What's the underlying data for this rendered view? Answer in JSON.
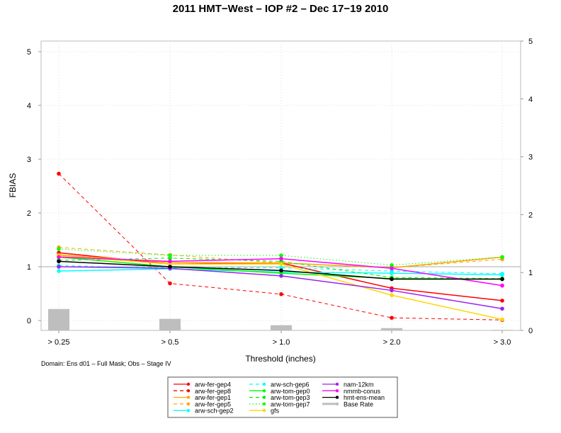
{
  "chart_data": {
    "type": "line",
    "title": "2011 HMT−West – IOP #2 – Dec 17−19 2010",
    "xlabel": "Threshold (inches)",
    "ylabel": "FBIAS",
    "caption": "Domain: Ens d01 – Full Mask; Obs – Stage IV",
    "categories": [
      "> 0.25",
      "> 0.5",
      "> 1.0",
      "> 2.0",
      "> 3.0"
    ],
    "ylim": [
      0,
      5
    ],
    "yticks": [
      "0",
      "1",
      "2",
      "3",
      "4",
      "5"
    ],
    "y2lim": [
      0,
      5
    ],
    "y2ticks": [
      "0",
      "1",
      "2",
      "3",
      "4",
      "5"
    ],
    "reference_line": 1,
    "grid": true,
    "legend_position": "bottom-center",
    "series": [
      {
        "name": "arw-fer-gep4",
        "color": "#ff0000",
        "style": "solid",
        "values": [
          1.26,
          1.05,
          1.07,
          0.6,
          0.37
        ]
      },
      {
        "name": "arw-fer-gep8",
        "color": "#ff0000",
        "style": "dashed",
        "values": [
          2.73,
          0.69,
          0.49,
          0.05,
          0.01
        ]
      },
      {
        "name": "arw-fer-gep1",
        "color": "#ffa500",
        "style": "solid",
        "values": [
          1.22,
          1.08,
          1.07,
          0.98,
          1.18
        ]
      },
      {
        "name": "arw-fer-gep5",
        "color": "#ffa500",
        "style": "dashed",
        "values": [
          1.36,
          1.22,
          1.07,
          0.98,
          1.14
        ]
      },
      {
        "name": "arw-sch-gep2",
        "color": "#00ffff",
        "style": "solid",
        "values": [
          0.92,
          0.96,
          0.9,
          0.88,
          0.85
        ]
      },
      {
        "name": "arw-sch-gep6",
        "color": "#00ffff",
        "style": "dashed",
        "values": [
          1.02,
          0.98,
          0.98,
          0.92,
          0.87
        ]
      },
      {
        "name": "arw-tom-gep0",
        "color": "#00ff00",
        "style": "solid",
        "values": [
          1.18,
          1.0,
          0.88,
          0.78,
          0.77
        ]
      },
      {
        "name": "arw-tom-gep3",
        "color": "#00ee00",
        "style": "dashed",
        "values": [
          1.12,
          1.16,
          1.1,
          0.8,
          0.78
        ]
      },
      {
        "name": "arw-tom-gep7",
        "color": "#00ff00",
        "style": "dotted",
        "values": [
          1.33,
          1.21,
          1.21,
          1.03,
          1.18
        ]
      },
      {
        "name": "gfs",
        "color": "#ffd700",
        "style": "solid",
        "values": [
          1.2,
          1.05,
          1.05,
          0.47,
          0.02
        ]
      },
      {
        "name": "nam-12km",
        "color": "#a020f0",
        "style": "solid",
        "values": [
          1.0,
          0.97,
          0.83,
          0.56,
          0.22
        ]
      },
      {
        "name": "nmmb-conus",
        "color": "#ff00ff",
        "style": "solid",
        "values": [
          1.18,
          1.1,
          1.15,
          0.97,
          0.65
        ]
      },
      {
        "name": "hmt-ens-mean",
        "color": "#000000",
        "style": "solid",
        "values": [
          1.1,
          1.0,
          0.93,
          0.77,
          0.77
        ]
      }
    ],
    "base_rate": {
      "name": "Base Rate",
      "color": "#bebebe",
      "values": [
        0.37,
        0.2,
        0.09,
        0.04,
        0.01
      ]
    }
  }
}
